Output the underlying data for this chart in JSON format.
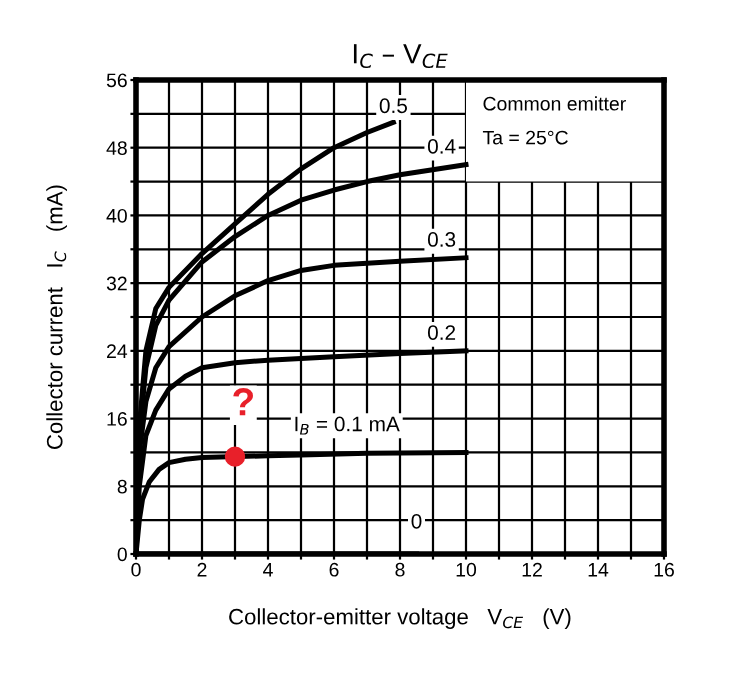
{
  "chart_data": {
    "type": "line",
    "title": "I$_{C}$ – V$_{CE}$",
    "xlabel": "Collector-emitter voltage   V$_{CE}$   (V)",
    "ylabel": "Collector current   I$_{C}$   (mA)",
    "xlim": [
      0,
      16
    ],
    "ylim": [
      0,
      56
    ],
    "xticks": [
      0,
      {
        "value": 1,
        "label": null
      },
      2,
      {
        "value": 3,
        "label": null
      },
      4,
      {
        "value": 5,
        "label": null
      },
      6,
      {
        "value": 7,
        "label": null
      },
      8,
      {
        "value": 9,
        "label": null
      },
      10,
      {
        "value": 11,
        "label": null
      },
      12,
      {
        "value": 13,
        "label": null
      },
      14,
      {
        "value": 15,
        "label": null
      },
      16
    ],
    "yticks": [
      0,
      {
        "value": 4,
        "label": null
      },
      8,
      {
        "value": 12,
        "label": null
      },
      16,
      {
        "value": 20,
        "label": null
      },
      24,
      {
        "value": 28,
        "label": null
      },
      32,
      {
        "value": 36,
        "label": null
      },
      40,
      {
        "value": 44,
        "label": null
      },
      48,
      {
        "value": 52,
        "label": null
      },
      56
    ],
    "grid": true,
    "legend": false,
    "marker": "none",
    "line_style": "solid",
    "series": [
      {
        "name": "0.5",
        "color": "#000000",
        "x": [
          0,
          0.1,
          0.3,
          0.6,
          1,
          2,
          3,
          4,
          5,
          6,
          7,
          7.8
        ],
        "values": [
          0,
          15,
          24,
          29,
          31.5,
          35.5,
          39,
          42.5,
          45.5,
          48,
          49.8,
          51
        ]
      },
      {
        "name": "0.4",
        "color": "#000000",
        "x": [
          0,
          0.1,
          0.3,
          0.6,
          1,
          2,
          3,
          4,
          5,
          6,
          7,
          8,
          10
        ],
        "values": [
          0,
          14,
          22,
          27,
          30,
          34.5,
          37.5,
          40,
          41.8,
          43,
          44,
          44.8,
          46
        ]
      },
      {
        "name": "0.3",
        "color": "#000000",
        "x": [
          0,
          0.1,
          0.3,
          0.6,
          1,
          2,
          3,
          4,
          5,
          6,
          8,
          10
        ],
        "values": [
          0,
          12,
          18,
          22,
          24.5,
          28,
          30.5,
          32.3,
          33.5,
          34.1,
          34.6,
          35
        ]
      },
      {
        "name": "0.2",
        "color": "#000000",
        "x": [
          0,
          0.1,
          0.3,
          0.6,
          1,
          1.5,
          2,
          3,
          4,
          6,
          8,
          10
        ],
        "values": [
          0,
          8,
          14,
          17,
          19.5,
          21,
          22,
          22.6,
          22.9,
          23.3,
          23.7,
          24
        ]
      },
      {
        "name": "I$_{B}$ = 0.1 mA",
        "color": "#000000",
        "x": [
          0,
          0.1,
          0.2,
          0.4,
          0.7,
          1,
          1.5,
          2,
          4,
          5,
          7,
          10
        ],
        "values": [
          0,
          4,
          6.5,
          8.5,
          10,
          10.8,
          11.2,
          11.4,
          11.6,
          11.7,
          11.9,
          12
        ]
      },
      {
        "name": "0",
        "color": "#000000",
        "x": [
          0,
          8.5
        ],
        "values": [
          0,
          0
        ]
      },
      {
        "type": "scatter",
        "color": "#e8202a",
        "marker": "circle",
        "x": [
          3
        ],
        "values": [
          11.5
        ]
      }
    ],
    "annotations": [
      "?",
      "Common emitter",
      "Ta = 25°C"
    ]
  }
}
